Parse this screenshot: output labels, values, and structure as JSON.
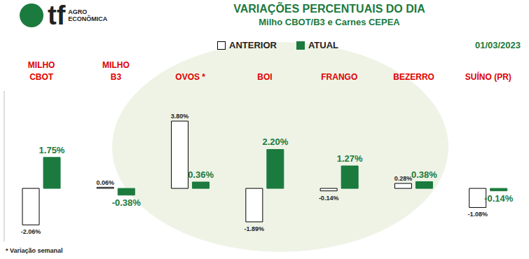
{
  "chart_data": {
    "type": "bar",
    "title": "VARIAÇÕES PERCENTUAIS DO DIA",
    "subtitle": "Milho CBOT/B3 e Carnes CEPEA",
    "date": "01/03/2023",
    "footnote": "* Variação semanal",
    "logo": {
      "text": "tf",
      "subtext": [
        "AGRO",
        "ECONÔMICA"
      ]
    },
    "categories": [
      "MILHO\nCBOT",
      "MILHO\nB3",
      "OVOS *",
      "BOI",
      "FRANGO",
      "BEZERRO",
      "SUÍNO (PR)"
    ],
    "series": [
      {
        "name": "ANTERIOR",
        "color": "#ffffff",
        "values": [
          -2.06,
          0.06,
          3.8,
          -1.89,
          -0.14,
          0.28,
          -1.08
        ],
        "value_labels": [
          "-2.06%",
          "0.06%",
          "3.80%",
          "-1.89%",
          "-0.14%",
          "0.28%",
          "-1.08%"
        ]
      },
      {
        "name": "ATUAL",
        "color": "#1b7a3e",
        "values": [
          1.75,
          -0.38,
          0.36,
          2.2,
          1.27,
          0.38,
          -0.14
        ],
        "value_labels": [
          "1.75%",
          "-0.38%",
          "0.36%",
          "2.20%",
          "1.27%",
          "0.38%",
          "-0.14%"
        ]
      }
    ],
    "ylim": [
      -3,
      5.5
    ],
    "yticks": [
      0
    ],
    "grid": true,
    "data_labels": true,
    "tick_labels": "x",
    "legend": "top"
  }
}
